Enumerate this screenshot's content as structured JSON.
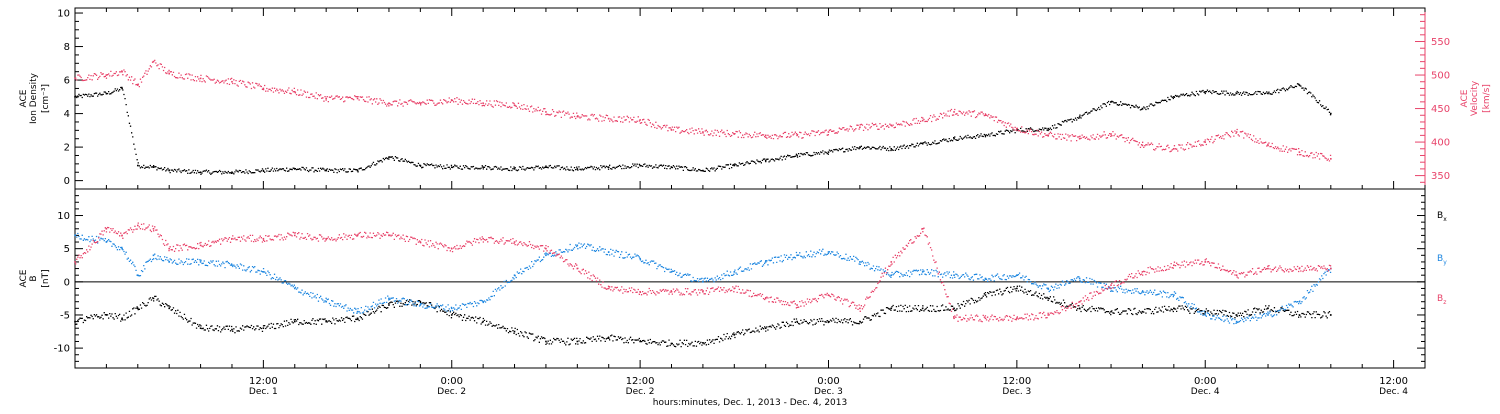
{
  "colors": {
    "black": "#000000",
    "pink": "#e8436a",
    "blue": "#1f87e0"
  },
  "x_axis": {
    "ticks": [
      {
        "t": 12,
        "time": "12:00",
        "day": "Dec. 1"
      },
      {
        "t": 24,
        "time": "0:00",
        "day": "Dec. 2"
      },
      {
        "t": 36,
        "time": "12:00",
        "day": "Dec. 2"
      },
      {
        "t": 48,
        "time": "0:00",
        "day": "Dec. 3"
      },
      {
        "t": 60,
        "time": "12:00",
        "day": "Dec. 3"
      },
      {
        "t": 72,
        "time": "0:00",
        "day": "Dec. 4"
      },
      {
        "t": 84,
        "time": "12:00",
        "day": "Dec. 4"
      }
    ],
    "label": "hours:minutes, Dec. 1, 2013 - Dec. 4, 2013",
    "range_hours_since_dec1": [
      0,
      86
    ]
  },
  "chart_data": [
    {
      "type": "scatter",
      "panel": "top",
      "ylabel_left": [
        "ACE",
        "Ion Density",
        "[cm⁻³]"
      ],
      "ylabel_right": [
        "ACE",
        "Velocity",
        "[km/s]"
      ],
      "y_left": {
        "lim": [
          -0.5,
          10.3
        ],
        "ticks": [
          0,
          2,
          4,
          6,
          8,
          10
        ]
      },
      "y_right": {
        "lim": [
          330,
          600
        ],
        "ticks": [
          350,
          400,
          450,
          500,
          550
        ]
      },
      "series": [
        {
          "axis": "left",
          "color": "black",
          "points": [
            [
              0,
              5.0
            ],
            [
              2,
              5.2
            ],
            [
              3,
              5.5
            ],
            [
              4,
              0.9
            ],
            [
              5,
              0.8
            ],
            [
              6,
              0.6
            ],
            [
              8,
              0.5
            ],
            [
              10,
              0.5
            ],
            [
              12,
              0.6
            ],
            [
              14,
              0.7
            ],
            [
              16,
              0.6
            ],
            [
              18,
              0.6
            ],
            [
              20,
              1.4
            ],
            [
              22,
              0.9
            ],
            [
              24,
              0.8
            ],
            [
              26,
              0.8
            ],
            [
              28,
              0.7
            ],
            [
              30,
              0.8
            ],
            [
              32,
              0.7
            ],
            [
              34,
              0.8
            ],
            [
              36,
              0.9
            ],
            [
              38,
              0.8
            ],
            [
              40,
              0.6
            ],
            [
              42,
              0.9
            ],
            [
              44,
              1.2
            ],
            [
              46,
              1.5
            ],
            [
              48,
              1.7
            ],
            [
              50,
              2.0
            ],
            [
              52,
              1.9
            ],
            [
              54,
              2.2
            ],
            [
              56,
              2.5
            ],
            [
              58,
              2.7
            ],
            [
              60,
              3.0
            ],
            [
              62,
              3.1
            ],
            [
              64,
              3.8
            ],
            [
              66,
              4.7
            ],
            [
              68,
              4.3
            ],
            [
              70,
              5.0
            ],
            [
              72,
              5.3
            ],
            [
              74,
              5.2
            ],
            [
              76,
              5.2
            ],
            [
              78,
              5.7
            ],
            [
              80,
              4.0
            ]
          ]
        },
        {
          "axis": "right",
          "color": "pink",
          "points": [
            [
              0,
              495
            ],
            [
              2,
              500
            ],
            [
              3,
              505
            ],
            [
              4,
              485
            ],
            [
              5,
              520
            ],
            [
              6,
              502
            ],
            [
              8,
              495
            ],
            [
              10,
              490
            ],
            [
              12,
              480
            ],
            [
              14,
              475
            ],
            [
              16,
              465
            ],
            [
              18,
              465
            ],
            [
              20,
              458
            ],
            [
              22,
              458
            ],
            [
              24,
              462
            ],
            [
              26,
              458
            ],
            [
              28,
              455
            ],
            [
              30,
              445
            ],
            [
              32,
              438
            ],
            [
              34,
              435
            ],
            [
              36,
              433
            ],
            [
              38,
              418
            ],
            [
              40,
              415
            ],
            [
              42,
              412
            ],
            [
              44,
              410
            ],
            [
              46,
              410
            ],
            [
              48,
              415
            ],
            [
              50,
              422
            ],
            [
              52,
              425
            ],
            [
              54,
              432
            ],
            [
              56,
              445
            ],
            [
              58,
              440
            ],
            [
              60,
              420
            ],
            [
              62,
              410
            ],
            [
              64,
              405
            ],
            [
              66,
              412
            ],
            [
              68,
              395
            ],
            [
              70,
              390
            ],
            [
              72,
              400
            ],
            [
              74,
              415
            ],
            [
              76,
              395
            ],
            [
              78,
              385
            ],
            [
              80,
              375
            ]
          ]
        }
      ]
    },
    {
      "type": "scatter",
      "panel": "bottom",
      "ylabel_left": [
        "ACE",
        "B",
        "[nT]"
      ],
      "y_left": {
        "lim": [
          -13,
          14
        ],
        "ticks": [
          -10,
          -5,
          0,
          5,
          10
        ]
      },
      "legend": [
        {
          "label": "B",
          "sub": "x",
          "color": "black"
        },
        {
          "label": "B",
          "sub": "y",
          "color": "blue"
        },
        {
          "label": "B",
          "sub": "z",
          "color": "pink"
        }
      ],
      "series": [
        {
          "name": "Bx",
          "color": "black",
          "points": [
            [
              0,
              -6
            ],
            [
              2,
              -5
            ],
            [
              3,
              -5.5
            ],
            [
              4,
              -4
            ],
            [
              5,
              -2.5
            ],
            [
              6,
              -4
            ],
            [
              8,
              -7
            ],
            [
              10,
              -7.2
            ],
            [
              12,
              -7
            ],
            [
              14,
              -6
            ],
            [
              16,
              -6
            ],
            [
              18,
              -5.5
            ],
            [
              20,
              -3.5
            ],
            [
              22,
              -3
            ],
            [
              24,
              -5
            ],
            [
              26,
              -6
            ],
            [
              28,
              -7.5
            ],
            [
              30,
              -9
            ],
            [
              32,
              -9
            ],
            [
              34,
              -8.5
            ],
            [
              36,
              -9
            ],
            [
              38,
              -9.3
            ],
            [
              40,
              -9.2
            ],
            [
              42,
              -8
            ],
            [
              44,
              -7
            ],
            [
              46,
              -6
            ],
            [
              48,
              -6
            ],
            [
              50,
              -6
            ],
            [
              52,
              -4
            ],
            [
              54,
              -4
            ],
            [
              56,
              -4
            ],
            [
              58,
              -2
            ],
            [
              60,
              -1
            ],
            [
              62,
              -2.5
            ],
            [
              64,
              -4
            ],
            [
              66,
              -4.5
            ],
            [
              68,
              -4.5
            ],
            [
              70,
              -4
            ],
            [
              72,
              -4.5
            ],
            [
              74,
              -5
            ],
            [
              76,
              -4
            ],
            [
              78,
              -5
            ],
            [
              80,
              -5
            ]
          ]
        },
        {
          "name": "By",
          "color": "blue",
          "points": [
            [
              0,
              7
            ],
            [
              2,
              6
            ],
            [
              3,
              5
            ],
            [
              4,
              1
            ],
            [
              5,
              4
            ],
            [
              6,
              3
            ],
            [
              8,
              3
            ],
            [
              10,
              2.5
            ],
            [
              12,
              1.5
            ],
            [
              14,
              -1
            ],
            [
              16,
              -3
            ],
            [
              18,
              -4.5
            ],
            [
              20,
              -2.5
            ],
            [
              22,
              -3.5
            ],
            [
              24,
              -4
            ],
            [
              26,
              -3
            ],
            [
              28,
              1
            ],
            [
              30,
              4
            ],
            [
              32,
              5.5
            ],
            [
              34,
              4.5
            ],
            [
              36,
              3.5
            ],
            [
              38,
              1.5
            ],
            [
              40,
              0
            ],
            [
              42,
              1.5
            ],
            [
              44,
              3
            ],
            [
              46,
              4
            ],
            [
              48,
              4.5
            ],
            [
              50,
              3
            ],
            [
              52,
              1
            ],
            [
              54,
              1.5
            ],
            [
              56,
              1
            ],
            [
              58,
              0.5
            ],
            [
              60,
              1
            ],
            [
              62,
              -1
            ],
            [
              64,
              0.5
            ],
            [
              66,
              -1
            ],
            [
              68,
              -1.5
            ],
            [
              70,
              -2
            ],
            [
              72,
              -5
            ],
            [
              74,
              -6
            ],
            [
              76,
              -5
            ],
            [
              78,
              -3
            ],
            [
              80,
              2
            ]
          ]
        },
        {
          "name": "Bz",
          "color": "pink",
          "points": [
            [
              0,
              3
            ],
            [
              2,
              8
            ],
            [
              3,
              7
            ],
            [
              4,
              8.5
            ],
            [
              5,
              8
            ],
            [
              6,
              5
            ],
            [
              8,
              5.5
            ],
            [
              10,
              6.5
            ],
            [
              12,
              6.5
            ],
            [
              14,
              7
            ],
            [
              16,
              6.5
            ],
            [
              18,
              7
            ],
            [
              20,
              7
            ],
            [
              22,
              6
            ],
            [
              24,
              5
            ],
            [
              26,
              6.5
            ],
            [
              28,
              6
            ],
            [
              30,
              5
            ],
            [
              32,
              2
            ],
            [
              34,
              -1
            ],
            [
              36,
              -1.5
            ],
            [
              38,
              -1.5
            ],
            [
              40,
              -1.5
            ],
            [
              42,
              -1
            ],
            [
              44,
              -2.5
            ],
            [
              46,
              -3.5
            ],
            [
              48,
              -2
            ],
            [
              50,
              -4
            ],
            [
              52,
              3
            ],
            [
              54,
              8
            ],
            [
              56,
              -5.5
            ],
            [
              58,
              -5.5
            ],
            [
              60,
              -5.5
            ],
            [
              62,
              -5
            ],
            [
              64,
              -3
            ],
            [
              66,
              -0.5
            ],
            [
              68,
              1.5
            ],
            [
              70,
              2.5
            ],
            [
              72,
              3
            ],
            [
              74,
              1
            ],
            [
              76,
              2
            ],
            [
              78,
              2
            ],
            [
              80,
              2
            ]
          ]
        }
      ]
    }
  ]
}
